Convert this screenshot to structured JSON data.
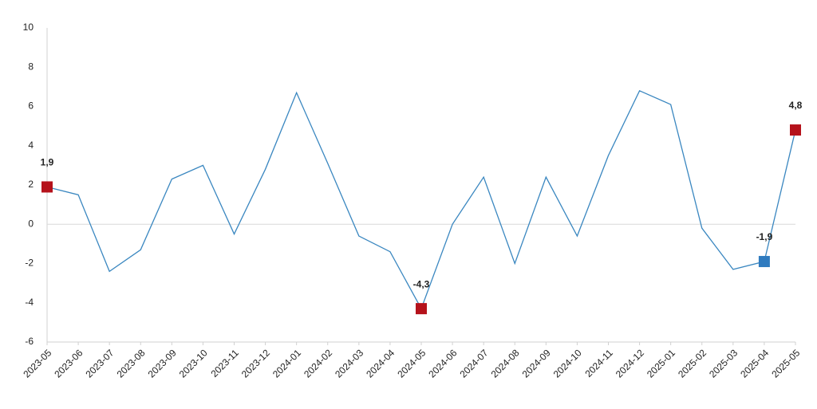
{
  "chart_data": {
    "type": "line",
    "x": [
      "2023-05",
      "2023-06",
      "2023-07",
      "2023-08",
      "2023-09",
      "2023-10",
      "2023-11",
      "2023-12",
      "2024-01",
      "2024-02",
      "2024-03",
      "2024-04",
      "2024-05",
      "2024-06",
      "2024-07",
      "2024-08",
      "2024-09",
      "2024-10",
      "2024-11",
      "2024-12",
      "2025-01",
      "2025-02",
      "2025-03",
      "2025-04",
      "2025-05"
    ],
    "series": [
      {
        "color": "#3a87c0",
        "values": [
          1.9,
          1.5,
          -2.4,
          -1.3,
          2.3,
          3.0,
          -0.5,
          2.8,
          6.7,
          3.1,
          -0.6,
          -1.4,
          -4.3,
          0.0,
          2.4,
          -2.0,
          2.4,
          -0.6,
          3.5,
          6.8,
          6.1,
          -0.2,
          -2.3,
          -1.9,
          4.8
        ],
        "value_labels": [
          "1,9",
          null,
          null,
          null,
          null,
          null,
          null,
          null,
          null,
          null,
          null,
          null,
          "-4,3",
          null,
          null,
          null,
          null,
          null,
          null,
          null,
          null,
          null,
          null,
          "-1,9",
          "4,8"
        ],
        "marker_colors": [
          "#b5121b",
          null,
          null,
          null,
          null,
          null,
          null,
          null,
          null,
          null,
          null,
          null,
          "#b5121b",
          null,
          null,
          null,
          null,
          null,
          null,
          null,
          null,
          null,
          null,
          "#2f7bbf",
          "#b5121b"
        ]
      }
    ],
    "ylim": [
      -6,
      10
    ],
    "yticks": [
      -6,
      -4,
      -2,
      0,
      2,
      4,
      6,
      8,
      10
    ],
    "zero_line": true
  }
}
